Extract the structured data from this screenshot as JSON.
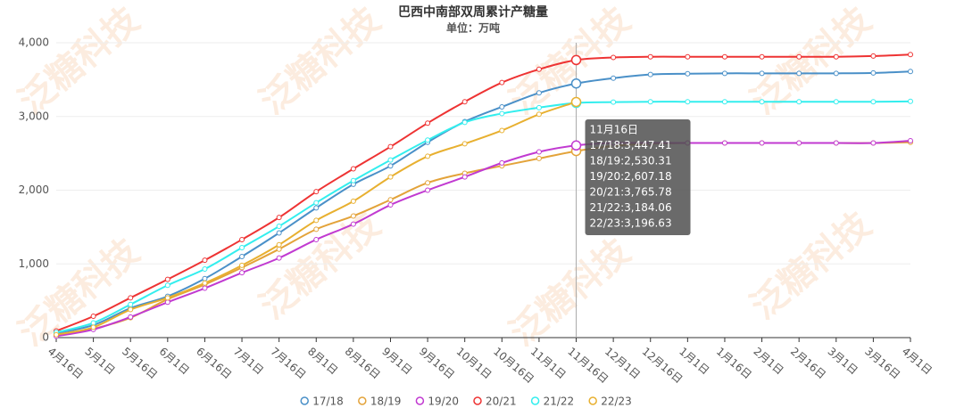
{
  "chart_data": {
    "type": "line",
    "title": "巴西中南部双周累计产糖量",
    "subtitle": "单位：万吨",
    "watermark": "泛糖科技",
    "categories": [
      "4月16日",
      "5月1日",
      "5月16日",
      "6月1日",
      "6月16日",
      "7月1日",
      "7月16日",
      "8月1日",
      "8月16日",
      "9月1日",
      "9月16日",
      "10月1日",
      "10月16日",
      "11月1日",
      "11月16日",
      "12月1日",
      "12月16日",
      "1月1日",
      "1月16日",
      "2月1日",
      "2月16日",
      "3月1日",
      "3月16日",
      "4月1日"
    ],
    "ylim": [
      0,
      4000
    ],
    "yticks": [
      0,
      {
        "value": 1000,
        "label": "1,000"
      },
      {
        "value": 2000,
        "label": "2,000"
      },
      {
        "value": 3000,
        "label": "3,000"
      },
      {
        "value": 4000,
        "label": "4,000"
      }
    ],
    "grid": true,
    "legend": "bottom",
    "series": [
      {
        "name": "17/18",
        "color": "#4a90c8",
        "values": [
          60,
          170,
          400,
          560,
          800,
          1100,
          1420,
          1760,
          2080,
          2330,
          2650,
          2930,
          3130,
          3320,
          3447.41,
          3520,
          3570,
          3580,
          3585,
          3585,
          3585,
          3585,
          3590,
          3610
        ]
      },
      {
        "name": "18/19",
        "color": "#e3a33a",
        "values": [
          30,
          120,
          270,
          520,
          720,
          950,
          1200,
          1470,
          1650,
          1870,
          2100,
          2230,
          2330,
          2430,
          2530.31,
          2600,
          2630,
          2640,
          2640,
          2640,
          2640,
          2640,
          2640,
          2650
        ]
      },
      {
        "name": "19/20",
        "color": "#c13ad1",
        "values": [
          20,
          110,
          280,
          480,
          670,
          880,
          1080,
          1330,
          1540,
          1800,
          2000,
          2180,
          2370,
          2520,
          2607.18,
          2640,
          2640,
          2640,
          2640,
          2640,
          2640,
          2640,
          2640,
          2670
        ]
      },
      {
        "name": "20/21",
        "color": "#ee3333",
        "values": [
          90,
          290,
          540,
          790,
          1050,
          1330,
          1630,
          1980,
          2290,
          2590,
          2910,
          3200,
          3460,
          3640,
          3765.78,
          3800,
          3810,
          3810,
          3810,
          3810,
          3810,
          3810,
          3820,
          3840
        ]
      },
      {
        "name": "21/22",
        "color": "#33eeee",
        "values": [
          70,
          200,
          450,
          710,
          930,
          1220,
          1510,
          1830,
          2130,
          2410,
          2680,
          2920,
          3040,
          3120,
          3184.06,
          3195,
          3200,
          3200,
          3200,
          3200,
          3200,
          3200,
          3200,
          3205
        ]
      },
      {
        "name": "22/23",
        "color": "#e8b030",
        "values": [
          40,
          140,
          380,
          540,
          740,
          980,
          1260,
          1590,
          1850,
          2180,
          2460,
          2630,
          2810,
          3030,
          3196.63,
          null,
          null,
          null,
          null,
          null,
          null,
          null,
          null,
          null
        ]
      }
    ],
    "tooltip": {
      "title": "11月16日",
      "lines": [
        "17/18:3,447.41",
        "18/19:2,530.31",
        "19/20:2,607.18",
        "20/21:3,765.78",
        "21/22:3,184.06",
        "22/23:3,196.63"
      ]
    }
  }
}
